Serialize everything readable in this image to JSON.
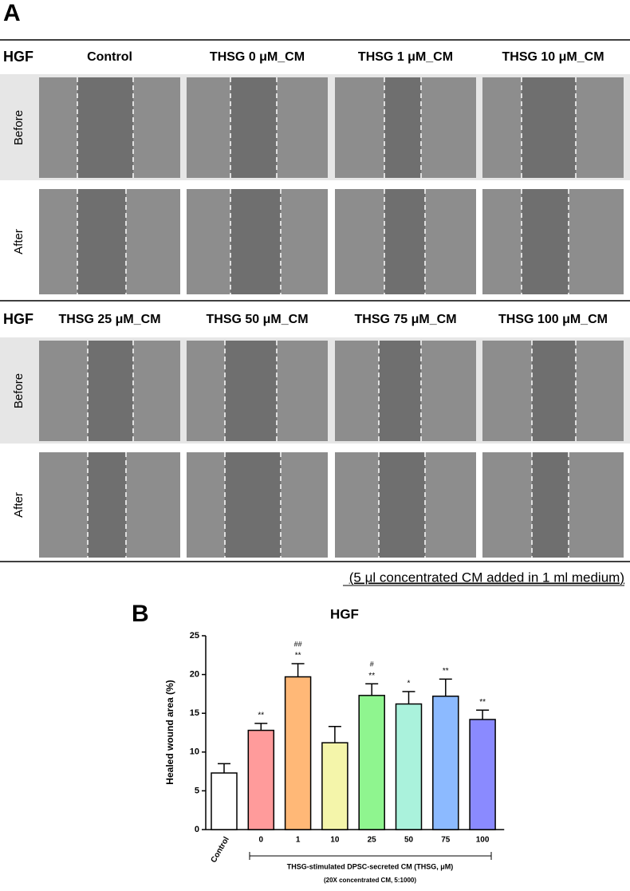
{
  "panel_a": {
    "label": "A",
    "rows": [
      {
        "group": "HGF",
        "columns": [
          "Control",
          "THSG 0 μM_CM",
          "THSG 1 μM_CM",
          "THSG 10 μM_CM"
        ]
      },
      {
        "group": "HGF",
        "columns": [
          "THSG 25 μM_CM",
          "THSG 50 μM_CM",
          "THSG 75 μM_CM",
          "THSG 100 μM_CM"
        ]
      }
    ],
    "row_labels": [
      "Before",
      "After"
    ],
    "note": "(5 μl concentrated CM added in 1 ml medium)"
  },
  "chart_data": {
    "type": "bar",
    "panel_label": "B",
    "title": "HGF",
    "y_label": "Healed wound area (%)",
    "categories": [
      "Control",
      "0",
      "1",
      "10",
      "25",
      "50",
      "75",
      "100"
    ],
    "values": [
      7.3,
      12.8,
      19.7,
      11.2,
      17.3,
      16.2,
      17.2,
      14.2
    ],
    "errors": [
      1.2,
      0.9,
      1.7,
      2.1,
      1.5,
      1.6,
      2.2,
      1.2
    ],
    "colors": [
      "#ffffff",
      "#ff9b9b",
      "#ffb877",
      "#f4f5aa",
      "#8ff58f",
      "#aaf2dc",
      "#8cbaff",
      "#8a8aff"
    ],
    "significance_vs_control": [
      null,
      "**",
      "**",
      null,
      "**",
      "*",
      "**",
      "**"
    ],
    "significance_vs_thsg0": [
      null,
      null,
      "##",
      null,
      "#",
      null,
      null,
      null
    ],
    "x_group_label": "THSG-stimulated DPSC-secreted CM (THSG, μM)",
    "x_group_sublabel": "(20X concentrated CM, 5:1000)",
    "ylim": [
      0,
      25
    ],
    "yticks": [
      0,
      5,
      10,
      15,
      20,
      25
    ]
  }
}
